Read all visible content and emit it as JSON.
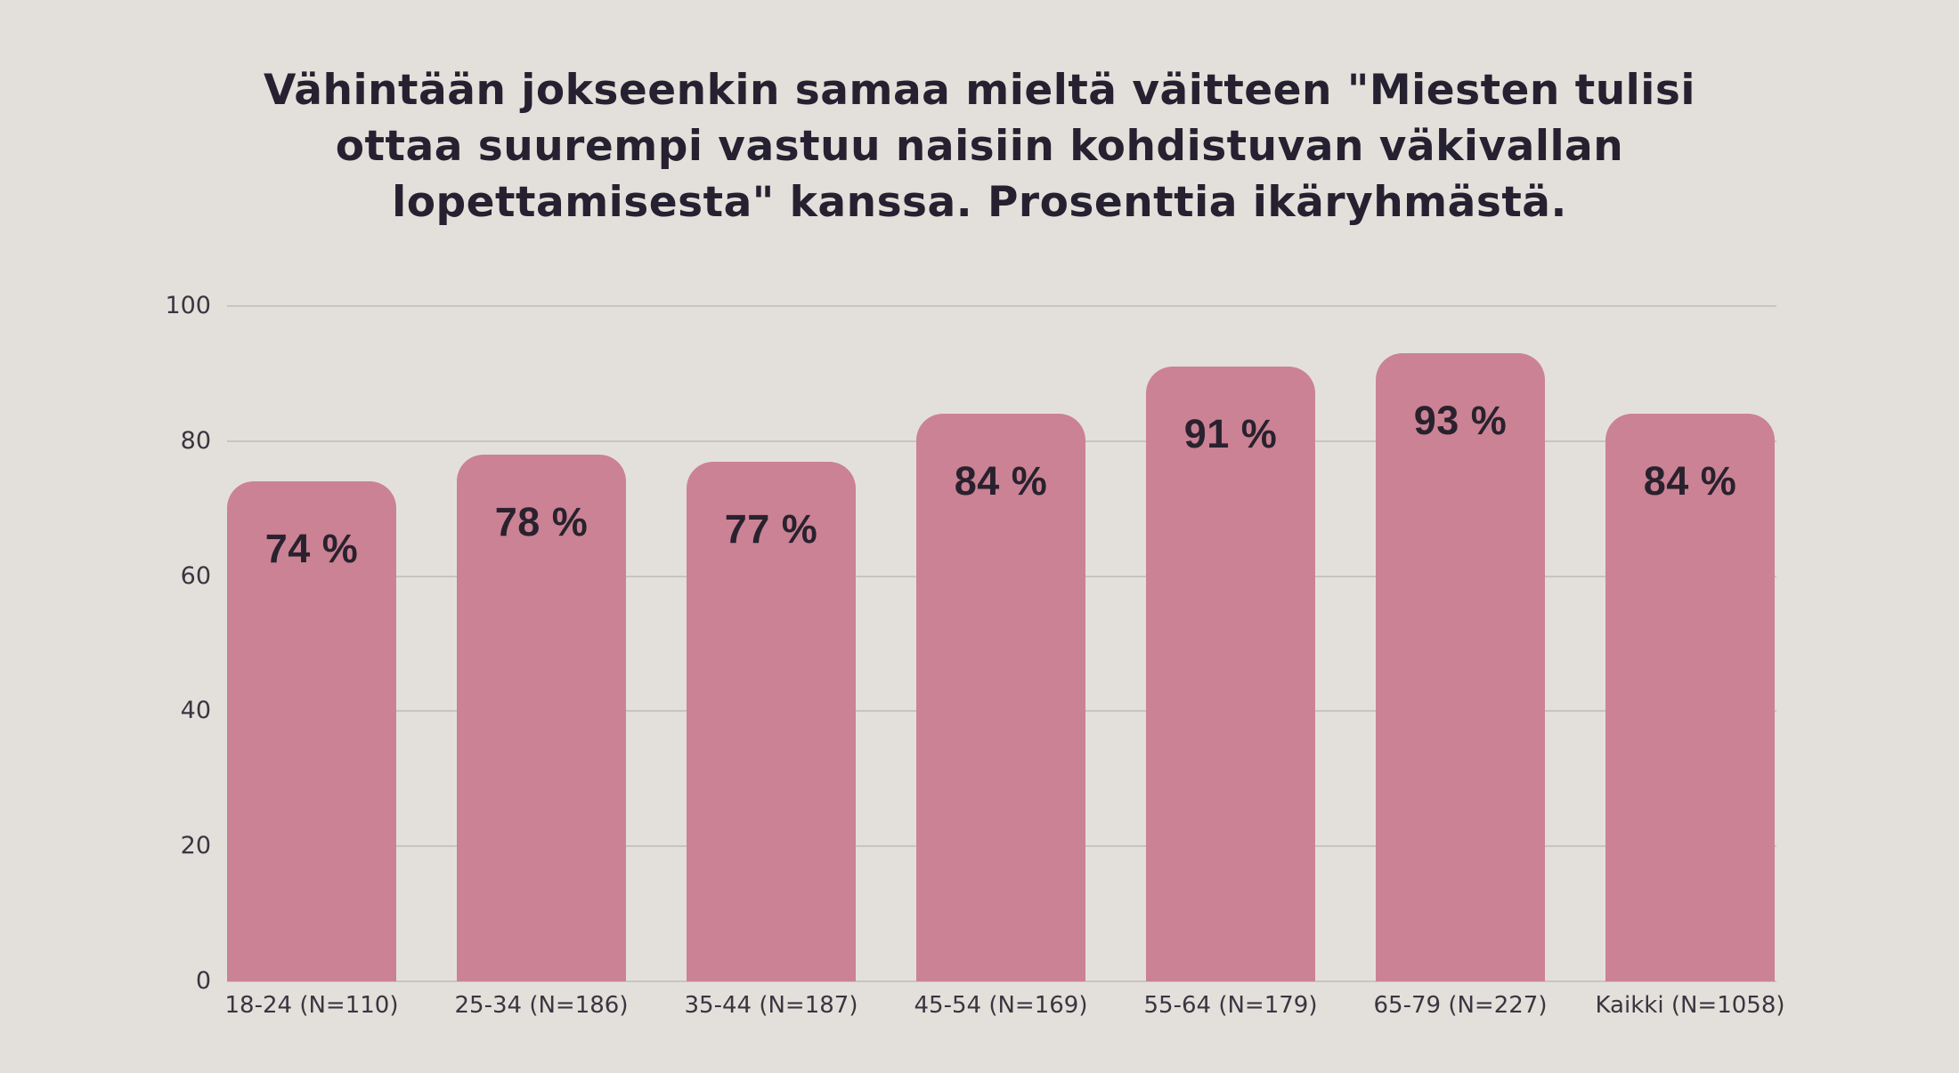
{
  "page": {
    "background_color": "#e3e0db",
    "title_color": "#262130",
    "title_lines": [
      "Vähintään jokseenkin samaa mieltä väitteen \"Miesten tulisi",
      "ottaa suurempi vastuu naisiin kohdistuvan väkivallan",
      "lopettamisesta\" kanssa. Prosenttia ikäryhmästä."
    ]
  },
  "chart_data": {
    "type": "bar",
    "title": "Vähintään jokseenkin samaa mieltä väitteen \"Miesten tulisi ottaa suurempi vastuu naisiin kohdistuvan väkivallan lopettamisesta\" kanssa. Prosenttia ikäryhmästä.",
    "categories": [
      "18-24 (N=110)",
      "25-34 (N=186)",
      "35-44 (N=187)",
      "45-54 (N=169)",
      "55-64 (N=179)",
      "65-79 (N=227)",
      "Kaikki (N=1058)"
    ],
    "values": [
      74,
      78,
      77,
      84,
      91,
      93,
      84
    ],
    "value_labels": [
      "74 %",
      "78 %",
      "77 %",
      "84 %",
      "91 %",
      "93 %",
      "84 %"
    ],
    "xlabel": "",
    "ylabel": "",
    "ylim": [
      0,
      100
    ],
    "yticks": [
      0,
      20,
      40,
      60,
      80,
      100
    ],
    "grid": true,
    "legend": false,
    "bar_color": "#cb8294",
    "value_label_color": "#29222e",
    "axis_text_color": "#3a3540",
    "gridline_color": "#c8c5c0"
  }
}
